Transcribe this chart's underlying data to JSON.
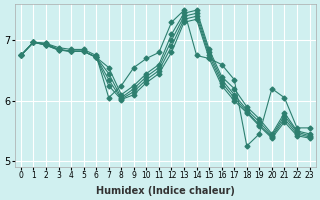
{
  "xlabel": "Humidex (Indice chaleur)",
  "ylabel": "",
  "bg_color": "#d0f0f0",
  "line_color": "#2d7f6f",
  "grid_color": "#ffffff",
  "xlim": [
    -0.5,
    23.5
  ],
  "ylim": [
    4.9,
    7.6
  ],
  "yticks": [
    5,
    6,
    7
  ],
  "xtick_labels": [
    "0",
    "1",
    "2",
    "3",
    "4",
    "5",
    "6",
    "7",
    "8",
    "9",
    "10",
    "11",
    "12",
    "13",
    "14",
    "15",
    "16",
    "17",
    "18",
    "19",
    "20",
    "21",
    "22",
    "23"
  ],
  "series": [
    [
      6.75,
      6.97,
      6.95,
      6.88,
      6.85,
      6.85,
      6.75,
      6.05,
      6.25,
      6.55,
      6.7,
      6.8,
      7.3,
      7.5,
      6.75,
      6.7,
      6.6,
      6.35,
      5.25,
      5.45,
      6.2,
      6.05,
      5.55,
      5.55
    ],
    [
      6.75,
      6.97,
      6.95,
      6.85,
      6.82,
      6.82,
      6.72,
      6.55,
      6.1,
      6.25,
      6.45,
      6.6,
      7.1,
      7.45,
      7.5,
      6.85,
      6.4,
      6.2,
      5.9,
      5.7,
      5.45,
      5.8,
      5.5,
      5.45
    ],
    [
      6.75,
      6.97,
      6.93,
      6.85,
      6.82,
      6.82,
      6.72,
      6.45,
      6.05,
      6.2,
      6.4,
      6.55,
      7.0,
      7.4,
      7.45,
      6.8,
      6.35,
      6.1,
      5.85,
      5.65,
      5.42,
      5.75,
      5.48,
      5.42
    ],
    [
      6.75,
      6.97,
      6.92,
      6.84,
      6.82,
      6.82,
      6.72,
      6.35,
      6.03,
      6.15,
      6.35,
      6.5,
      6.9,
      7.35,
      7.4,
      6.75,
      6.3,
      6.05,
      5.82,
      5.6,
      5.4,
      5.7,
      5.45,
      5.4
    ],
    [
      6.75,
      6.97,
      6.92,
      6.84,
      6.82,
      6.82,
      6.72,
      6.25,
      6.02,
      6.1,
      6.3,
      6.45,
      6.8,
      7.3,
      7.35,
      6.7,
      6.25,
      6.0,
      5.8,
      5.58,
      5.38,
      5.65,
      5.42,
      5.38
    ]
  ]
}
